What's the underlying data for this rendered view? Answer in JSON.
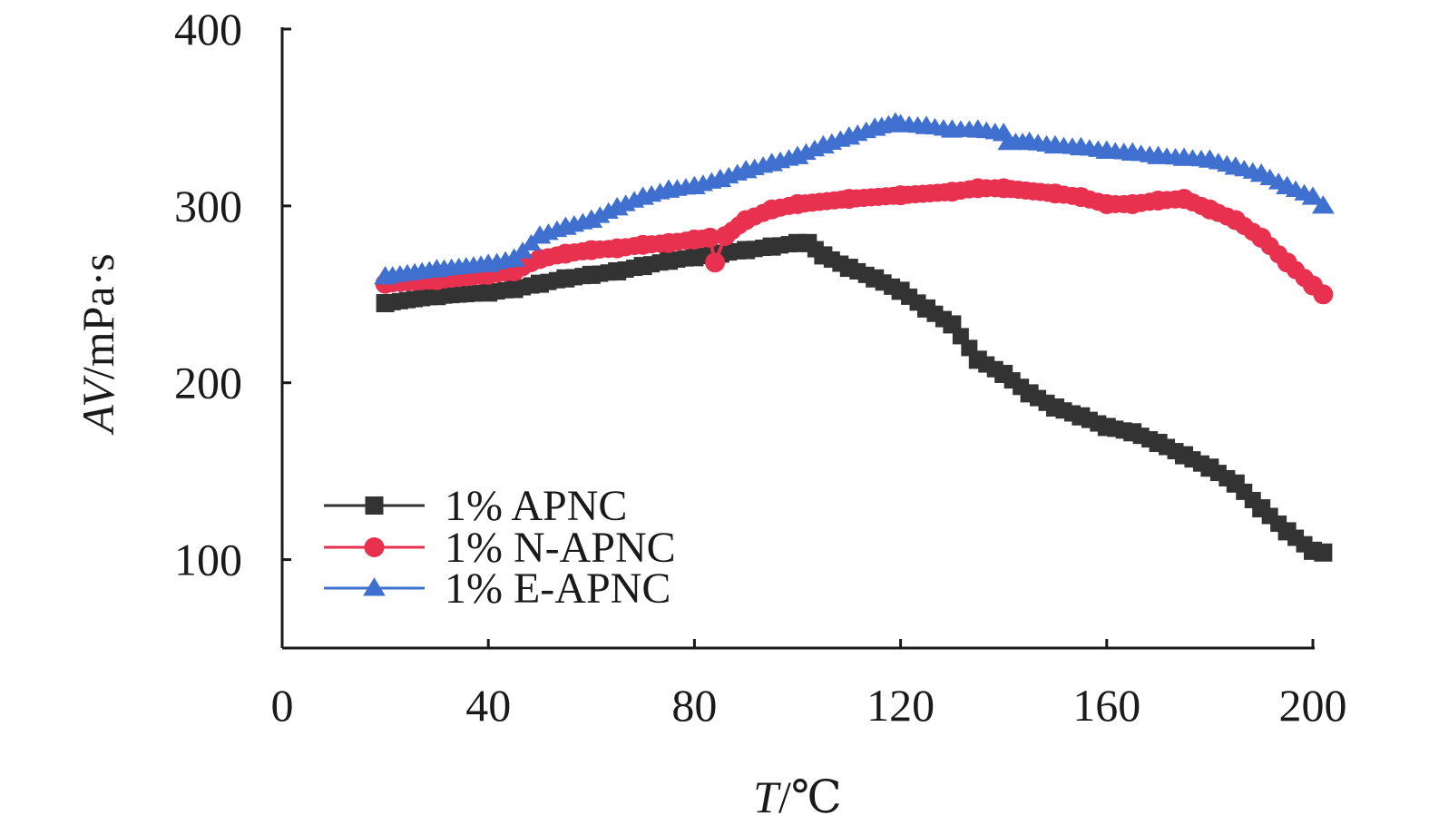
{
  "chart_data": {
    "type": "line",
    "xlabel": "T/℃",
    "xlabel_var": "T",
    "xlabel_unit": "/℃",
    "ylabel": "AV/mPa·s",
    "ylabel_var": "AV",
    "ylabel_unit": "/mPa·s",
    "xlim": [
      0,
      200
    ],
    "ylim": [
      50,
      400
    ],
    "x_ticks": [
      0,
      40,
      80,
      120,
      160,
      200
    ],
    "y_ticks": [
      100,
      200,
      300,
      400
    ],
    "x_tick_labels": [
      "0",
      "40",
      "80",
      "120",
      "160",
      "200"
    ],
    "y_tick_labels": [
      "100",
      "200",
      "300",
      "400"
    ],
    "grid": false,
    "legend_position": "bottom-left",
    "series": [
      {
        "name": "1% APNC",
        "color": "#333333",
        "marker": "square",
        "points": [
          [
            20,
            245
          ],
          [
            30,
            249
          ],
          [
            40,
            251
          ],
          [
            45,
            253
          ],
          [
            50,
            256
          ],
          [
            55,
            259
          ],
          [
            60,
            261
          ],
          [
            65,
            263
          ],
          [
            70,
            266
          ],
          [
            75,
            269
          ],
          [
            80,
            271
          ],
          [
            85,
            273
          ],
          [
            90,
            275
          ],
          [
            95,
            277
          ],
          [
            100,
            279
          ],
          [
            102,
            279
          ],
          [
            105,
            272
          ],
          [
            110,
            265
          ],
          [
            115,
            259
          ],
          [
            120,
            252
          ],
          [
            125,
            242
          ],
          [
            130,
            233
          ],
          [
            135,
            213
          ],
          [
            140,
            205
          ],
          [
            145,
            194
          ],
          [
            150,
            186
          ],
          [
            155,
            181
          ],
          [
            160,
            175
          ],
          [
            165,
            172
          ],
          [
            170,
            166
          ],
          [
            175,
            159
          ],
          [
            180,
            152
          ],
          [
            185,
            143
          ],
          [
            190,
            129
          ],
          [
            195,
            116
          ],
          [
            200,
            105
          ],
          [
            202,
            104
          ]
        ]
      },
      {
        "name": "1% N-APNC",
        "color": "#e8304f",
        "marker": "circle",
        "points": [
          [
            20,
            256
          ],
          [
            30,
            258
          ],
          [
            40,
            261
          ],
          [
            45,
            263
          ],
          [
            50,
            270
          ],
          [
            55,
            273
          ],
          [
            60,
            275
          ],
          [
            65,
            276
          ],
          [
            70,
            278
          ],
          [
            75,
            279
          ],
          [
            80,
            281
          ],
          [
            83,
            282
          ],
          [
            84,
            268
          ],
          [
            86,
            283
          ],
          [
            90,
            292
          ],
          [
            95,
            298
          ],
          [
            100,
            301
          ],
          [
            110,
            304
          ],
          [
            120,
            306
          ],
          [
            130,
            308
          ],
          [
            135,
            310
          ],
          [
            140,
            310
          ],
          [
            150,
            307
          ],
          [
            155,
            305
          ],
          [
            160,
            301
          ],
          [
            165,
            301
          ],
          [
            170,
            303
          ],
          [
            175,
            304
          ],
          [
            180,
            298
          ],
          [
            185,
            292
          ],
          [
            190,
            282
          ],
          [
            195,
            268
          ],
          [
            200,
            255
          ],
          [
            202,
            250
          ]
        ]
      },
      {
        "name": "1% E-APNC",
        "color": "#3f6fcf",
        "marker": "triangle",
        "points": [
          [
            20,
            260
          ],
          [
            30,
            264
          ],
          [
            40,
            267
          ],
          [
            45,
            270
          ],
          [
            50,
            283
          ],
          [
            55,
            288
          ],
          [
            60,
            292
          ],
          [
            65,
            299
          ],
          [
            70,
            305
          ],
          [
            75,
            309
          ],
          [
            80,
            311
          ],
          [
            85,
            315
          ],
          [
            90,
            320
          ],
          [
            95,
            324
          ],
          [
            100,
            328
          ],
          [
            105,
            334
          ],
          [
            110,
            339
          ],
          [
            115,
            344
          ],
          [
            119,
            347
          ],
          [
            120,
            346
          ],
          [
            125,
            345
          ],
          [
            130,
            343
          ],
          [
            135,
            343
          ],
          [
            140,
            341
          ],
          [
            141,
            336
          ],
          [
            145,
            336
          ],
          [
            150,
            334
          ],
          [
            155,
            333
          ],
          [
            160,
            331
          ],
          [
            165,
            330
          ],
          [
            170,
            328
          ],
          [
            175,
            327
          ],
          [
            180,
            326
          ],
          [
            185,
            322
          ],
          [
            190,
            318
          ],
          [
            195,
            311
          ],
          [
            200,
            305
          ],
          [
            202,
            300
          ]
        ]
      }
    ]
  }
}
